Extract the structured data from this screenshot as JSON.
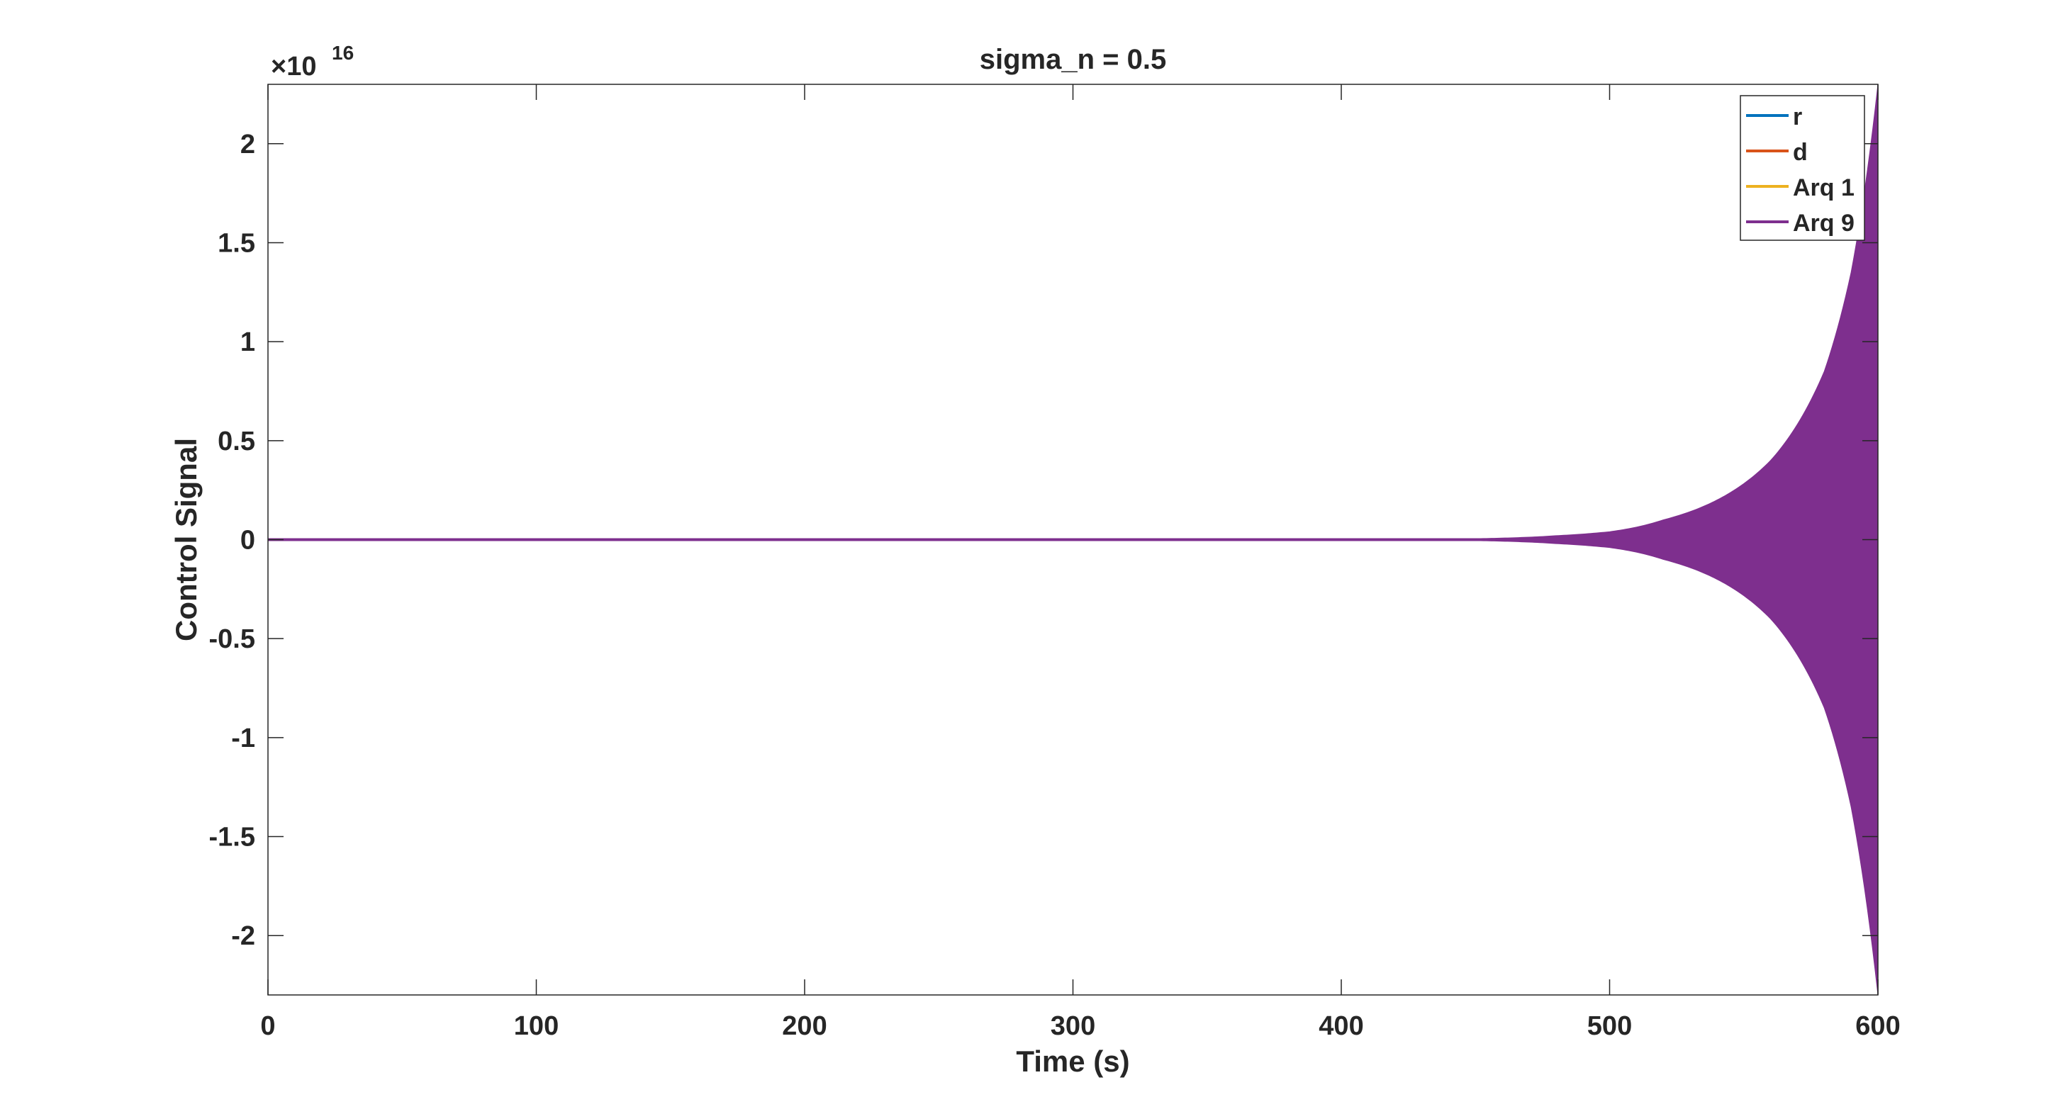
{
  "chart_data": {
    "type": "line",
    "title": "sigma_n = 0.5",
    "xlabel": "Time (s)",
    "ylabel": "Control Signal",
    "y_exponent_label": "×10",
    "y_exponent_power": "16",
    "xlim": [
      0,
      600
    ],
    "ylim": [
      -2.3,
      2.3
    ],
    "x_ticks": [
      0,
      100,
      200,
      300,
      400,
      500,
      600
    ],
    "x_tick_labels": [
      "0",
      "100",
      "200",
      "300",
      "400",
      "500",
      "600"
    ],
    "y_ticks": [
      2,
      1.5,
      1,
      0.5,
      0,
      -0.5,
      -1,
      -1.5,
      -2
    ],
    "y_tick_labels": [
      "2",
      "1.5",
      "1",
      "0.5",
      "0",
      "-0.5",
      "-1",
      "-1.5",
      "-2"
    ],
    "grid": false,
    "legend_position": "top-right",
    "series": [
      {
        "name": "r",
        "color": "#0072BD",
        "x": [
          0,
          600
        ],
        "y": [
          0,
          0
        ]
      },
      {
        "name": "d",
        "color": "#D95319",
        "x": [
          0,
          600
        ],
        "y": [
          0,
          0
        ]
      },
      {
        "name": "Arq 1",
        "color": "#EDB120",
        "x": [
          0,
          600
        ],
        "y": [
          0,
          0
        ]
      },
      {
        "name": "Arq 9",
        "color": "#7E2F8E",
        "style": "oscillating-envelope",
        "x": [
          0,
          450,
          480,
          500,
          520,
          540,
          560,
          580,
          590,
          600
        ],
        "y": [
          0,
          0.005,
          0.02,
          0.04,
          0.1,
          0.2,
          0.4,
          0.85,
          1.35,
          2.3
        ]
      }
    ]
  }
}
